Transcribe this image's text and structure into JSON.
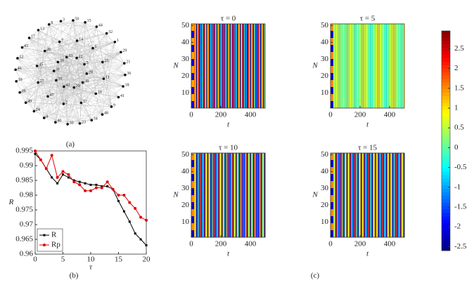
{
  "chart_data": [
    {
      "type": "network",
      "label": "(a)",
      "nodes": [
        50,
        15,
        44,
        32,
        1,
        29,
        21,
        36,
        18,
        41,
        9,
        48,
        34,
        23,
        30,
        40,
        4,
        24,
        49,
        16,
        10,
        46,
        12,
        43,
        17,
        13,
        8,
        3,
        14,
        6,
        25,
        11,
        19,
        37,
        2,
        47,
        27,
        45,
        26,
        7,
        22,
        5,
        28,
        38,
        20,
        42,
        35,
        31,
        39,
        33
      ]
    },
    {
      "type": "line",
      "label": "(b)",
      "xlabel": "τ",
      "ylabel": "R",
      "x": [
        0,
        1,
        2,
        3,
        4,
        5,
        6,
        7,
        8,
        9,
        10,
        11,
        12,
        13,
        14,
        15,
        16,
        17,
        18,
        19,
        20
      ],
      "series": [
        {
          "name": "R",
          "color": "#000000",
          "values": [
            0.994,
            0.992,
            0.989,
            0.986,
            0.984,
            0.987,
            0.986,
            0.985,
            0.9845,
            0.984,
            0.9835,
            0.9835,
            0.983,
            0.983,
            0.982,
            0.978,
            0.9745,
            0.971,
            0.967,
            0.965,
            0.963
          ]
        },
        {
          "name": "Rp",
          "color": "#e00000",
          "values": [
            0.995,
            0.992,
            0.989,
            0.9935,
            0.986,
            0.988,
            0.987,
            0.9845,
            0.9835,
            0.9815,
            0.9815,
            0.9825,
            0.9825,
            0.9845,
            0.982,
            0.98,
            0.98,
            0.9775,
            0.9755,
            0.9725,
            0.9715
          ]
        }
      ],
      "xlim": [
        0,
        20
      ],
      "xticks": [
        0,
        5,
        10,
        15,
        20
      ],
      "ylim": [
        0.96,
        0.995
      ],
      "yticks": [
        0.96,
        0.965,
        0.97,
        0.975,
        0.98,
        0.985,
        0.99,
        0.995
      ],
      "legend": "lower left"
    },
    {
      "type": "heatmap",
      "label": "(c)",
      "xlabel": "t",
      "ylabel": "N",
      "xlim": [
        0,
        500
      ],
      "xticks": [
        0,
        200,
        400
      ],
      "ylim": [
        1,
        51
      ],
      "yticks": [
        10,
        20,
        30,
        40,
        50
      ],
      "panels": [
        {
          "title": "τ = 0"
        },
        {
          "title": "τ = 5"
        },
        {
          "title": "τ = 10"
        },
        {
          "title": "τ = 15"
        }
      ],
      "colorbar": {
        "clim": [
          -2.6,
          2.95
        ],
        "ticks": [
          -2.5,
          -2,
          -1.5,
          -1,
          -0.5,
          0,
          0.5,
          1,
          1.5,
          2,
          2.5
        ]
      }
    }
  ]
}
